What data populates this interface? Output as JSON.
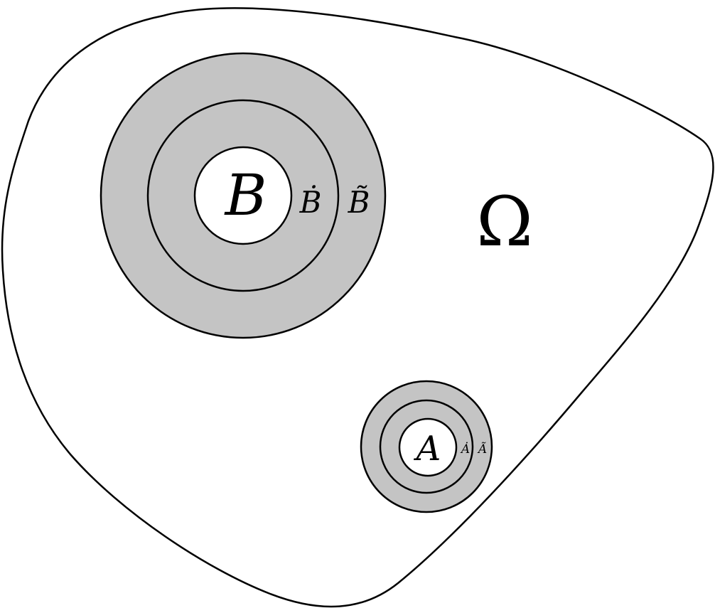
{
  "diagram": {
    "domain_label": "Ω",
    "colors": {
      "ring_fill": "#c4c4c4",
      "inner_fill": "#ffffff",
      "stroke": "#000000",
      "background": "#ffffff"
    },
    "ball_b": {
      "inner_label": "B",
      "middle_label": "Ḃ",
      "outer_label": "B̃"
    },
    "ball_a": {
      "inner_label": "A",
      "middle_label": "Ȧ",
      "outer_label": "Ã"
    }
  }
}
